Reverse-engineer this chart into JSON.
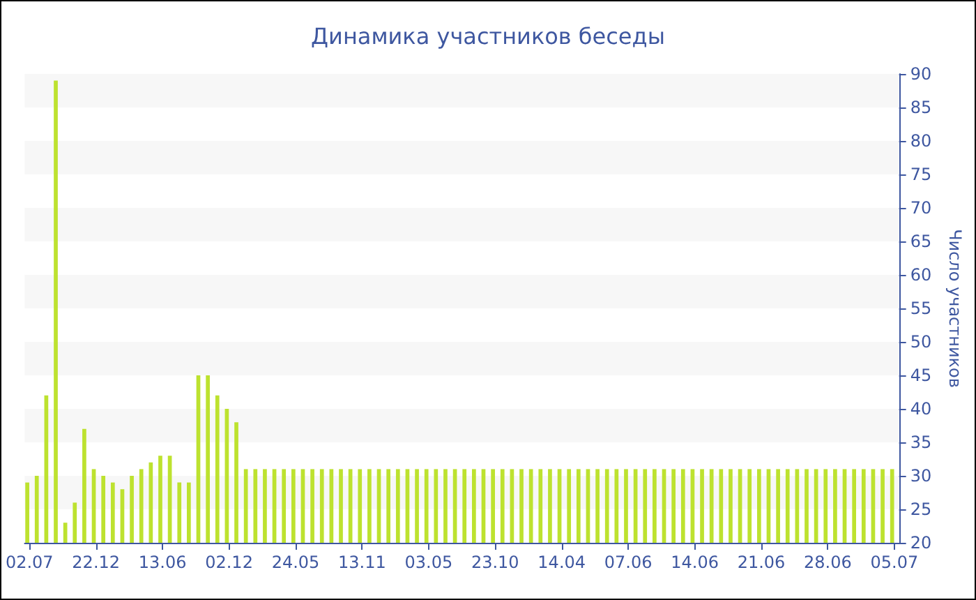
{
  "chart_data": {
    "type": "bar",
    "title": "Динамика участников беседы",
    "ylabel": "Число участников",
    "categories": [
      "02.07",
      null,
      null,
      null,
      null,
      null,
      null,
      "22.12",
      null,
      null,
      null,
      null,
      null,
      null,
      "13.06",
      null,
      null,
      null,
      null,
      null,
      null,
      "02.12",
      null,
      null,
      null,
      null,
      null,
      null,
      "24.05",
      null,
      null,
      null,
      null,
      null,
      null,
      "13.11",
      null,
      null,
      null,
      null,
      null,
      null,
      "03.05",
      null,
      null,
      null,
      null,
      null,
      null,
      "23.10",
      null,
      null,
      null,
      null,
      null,
      null,
      "14.04",
      null,
      null,
      null,
      null,
      null,
      null,
      "07.06",
      null,
      null,
      null,
      null,
      null,
      null,
      "14.06",
      null,
      null,
      null,
      null,
      null,
      null,
      "21.06",
      null,
      null,
      null,
      null,
      null,
      null,
      "28.06",
      null,
      null,
      null,
      null,
      null,
      null,
      "05.07"
    ],
    "values": [
      29,
      30,
      42,
      89,
      23,
      26,
      37,
      31,
      30,
      29,
      28,
      30,
      31,
      32,
      33,
      33,
      29,
      29,
      45,
      45,
      42,
      40,
      38,
      31,
      31,
      31,
      31,
      31,
      31,
      31,
      31,
      31,
      31,
      31,
      31,
      31,
      31,
      31,
      31,
      31,
      31,
      31,
      31,
      31,
      31,
      31,
      31,
      31,
      31,
      31,
      31,
      31,
      31,
      31,
      31,
      31,
      31,
      31,
      31,
      31,
      31,
      31,
      31,
      31,
      31,
      31,
      31,
      31,
      31,
      31,
      31,
      31,
      31,
      31,
      31,
      31,
      31,
      31,
      31,
      31,
      31,
      31,
      31,
      31,
      31,
      31,
      31,
      31,
      31,
      31,
      31,
      31
    ],
    "color": "#bde22f",
    "ylim": [
      20,
      90
    ],
    "yticks": [
      20,
      25,
      30,
      35,
      40,
      45,
      50,
      55,
      60,
      65,
      70,
      75,
      80,
      85,
      90
    ],
    "bands": [
      {
        "axis": "y",
        "from": 25,
        "to": 30,
        "color": "#f7f7f7"
      },
      {
        "axis": "y",
        "from": 35,
        "to": 40,
        "color": "#f7f7f7"
      },
      {
        "axis": "y",
        "from": 45,
        "to": 50,
        "color": "#f7f7f7"
      },
      {
        "axis": "y",
        "from": 55,
        "to": 60,
        "color": "#f7f7f7"
      },
      {
        "axis": "y",
        "from": 65,
        "to": 70,
        "color": "#f7f7f7"
      },
      {
        "axis": "y",
        "from": 75,
        "to": 80,
        "color": "#f7f7f7"
      },
      {
        "axis": "y",
        "from": 85,
        "to": 90,
        "color": "#f7f7f7"
      }
    ]
  }
}
